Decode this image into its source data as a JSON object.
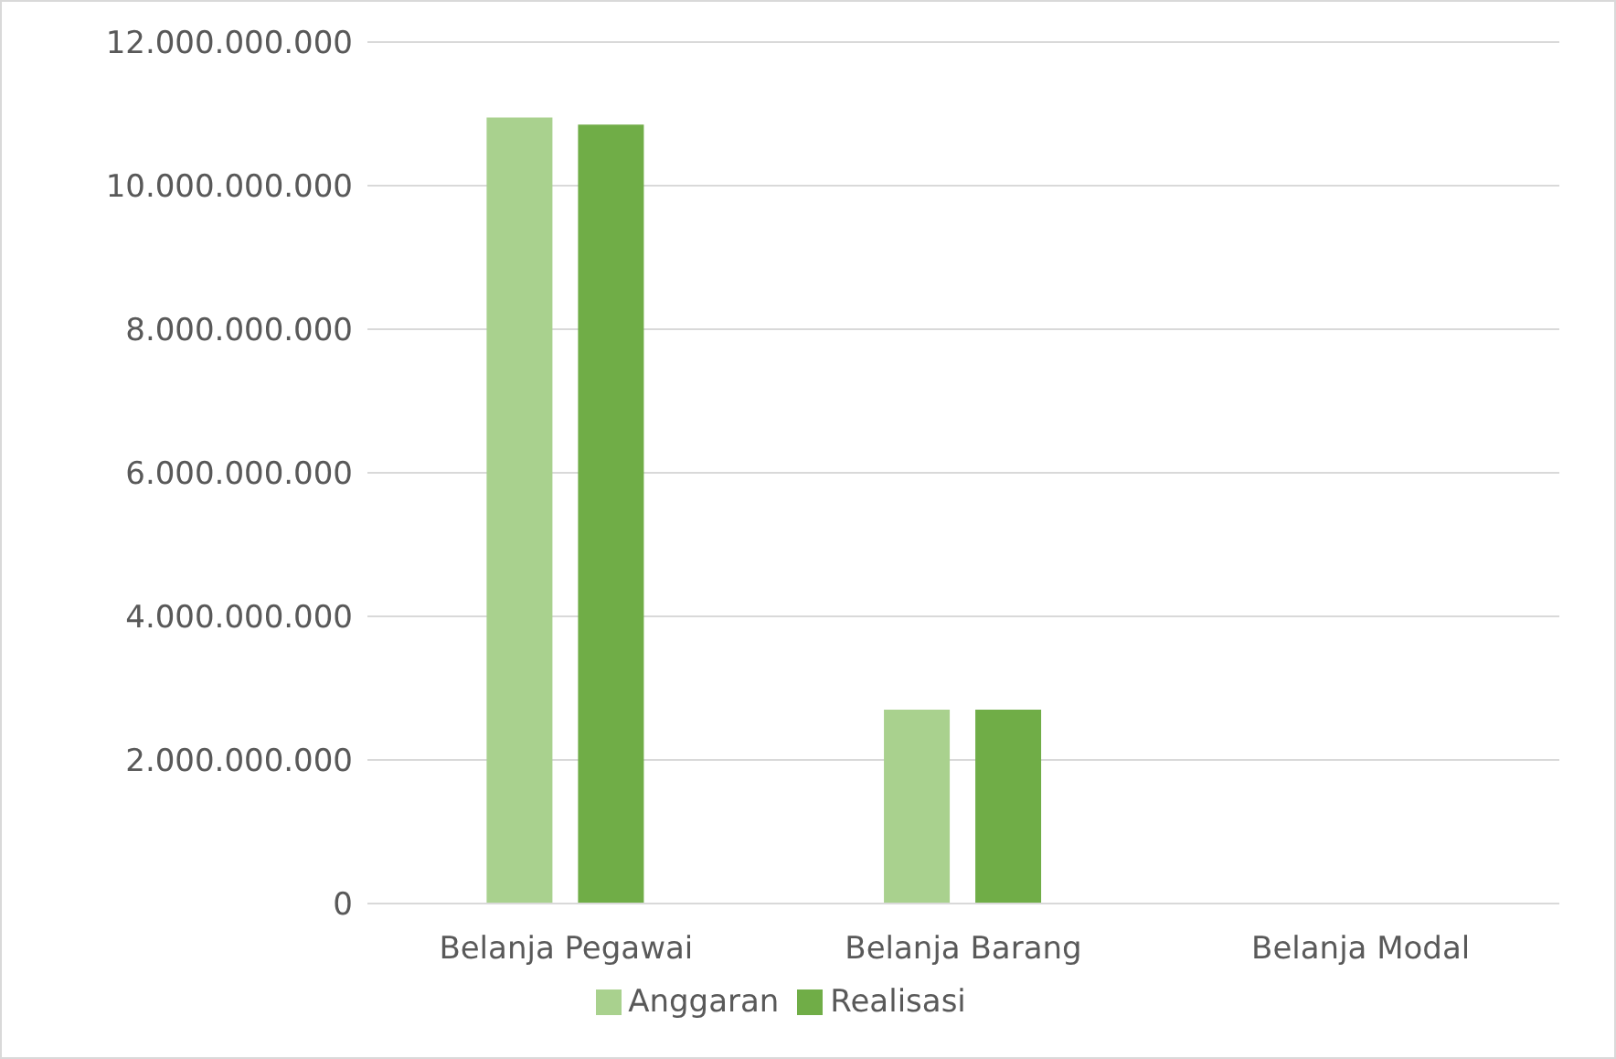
{
  "chart_data": {
    "type": "bar",
    "categories": [
      "Belanja Pegawai",
      "Belanja Barang",
      "Belanja Modal"
    ],
    "series": [
      {
        "name": "Anggaran",
        "color": "#a9d18e",
        "values": [
          10950000000,
          2700000000,
          0
        ]
      },
      {
        "name": "Realisasi",
        "color": "#70ad47",
        "values": [
          10850000000,
          2700000000,
          0
        ]
      }
    ],
    "ylim": [
      0,
      12000000000
    ],
    "yticks": [
      0,
      {
        "value": 2000000000,
        "label": "2.000.000.000"
      },
      {
        "value": 4000000000,
        "label": "4.000.000.000"
      },
      {
        "value": 6000000000,
        "label": "6.000.000.000"
      },
      {
        "value": 8000000000,
        "label": "8.000.000.000"
      },
      {
        "value": 10000000000,
        "label": "10.000.000.000"
      },
      {
        "value": 12000000000,
        "label": "12.000.000.000"
      }
    ],
    "grid": "y",
    "legend": "bottom"
  }
}
